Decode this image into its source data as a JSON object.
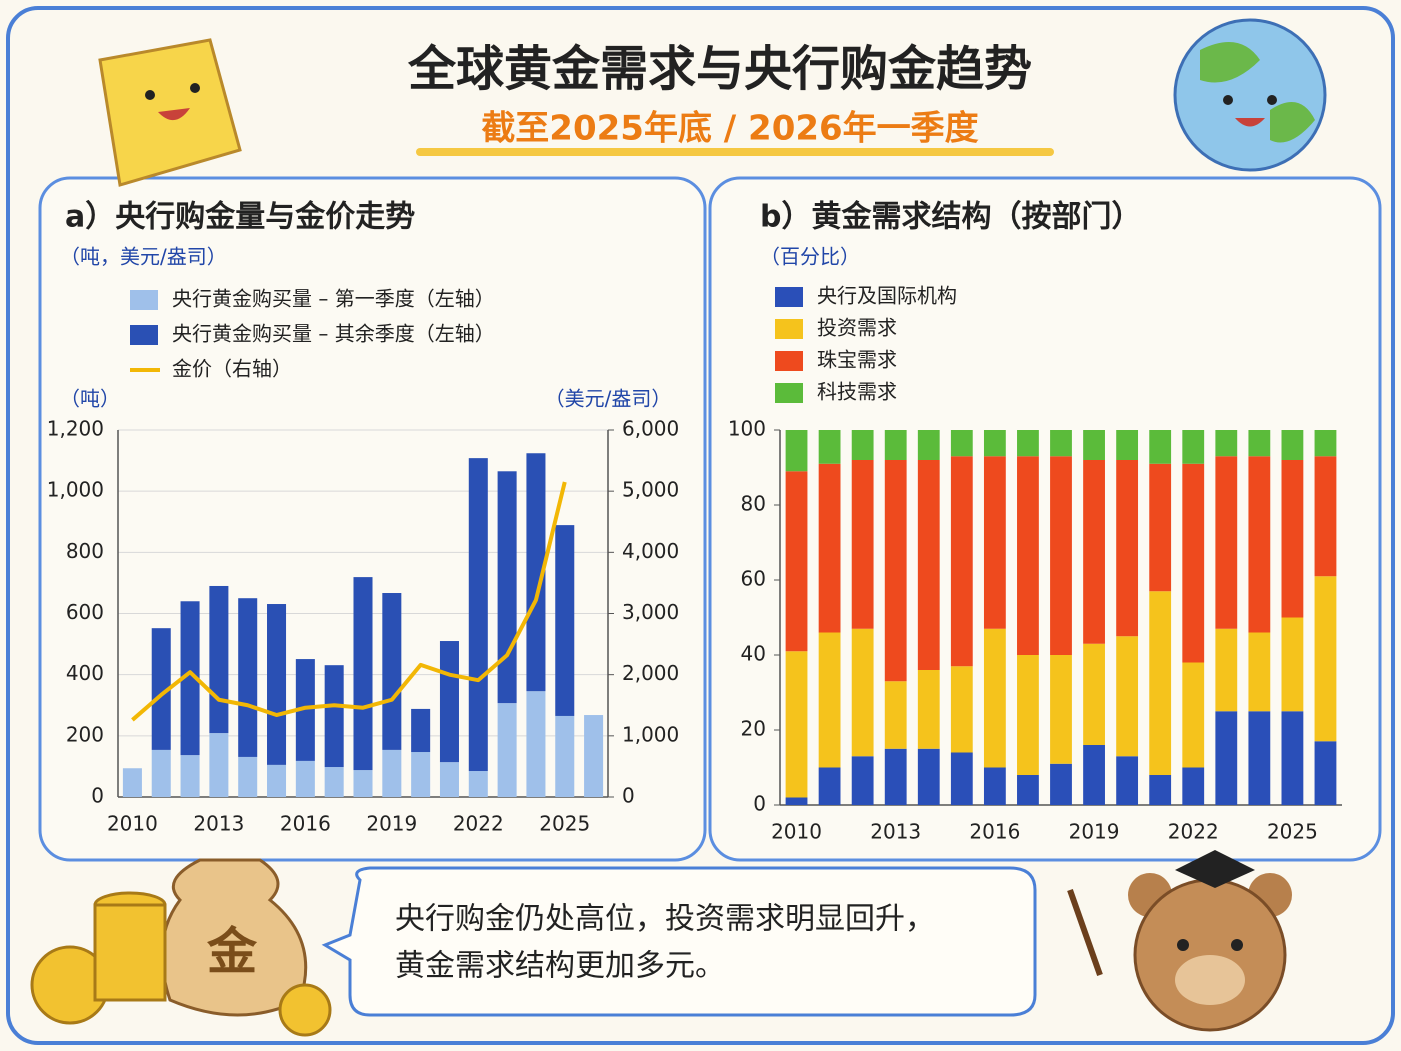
{
  "header": {
    "title": "全球黄金需求与央行购金趋势",
    "subtitle": "截至2025年底 / 2026年一季度"
  },
  "note": [
    "央行购金仍处高位，投资需求明显回升，",
    "黄金需求结构更加多元。"
  ],
  "chart_data": [
    {
      "type": "bar",
      "stacked": true,
      "title": "a）央行购金量与金价走势",
      "subtitle": "（吨，美元/盎司）",
      "ylabel": "（吨）",
      "y2label": "（美元/盎司）",
      "categories": [
        "2010",
        null,
        null,
        "2013",
        null,
        null,
        "2016",
        null,
        null,
        "2019",
        null,
        null,
        "2022",
        null,
        null,
        "2025",
        null
      ],
      "ylim": [
        0,
        1200
      ],
      "yticks": [
        0,
        200,
        400,
        600,
        800,
        {
          "value": 1000,
          "label": "1,000"
        },
        {
          "value": 1200,
          "label": "1,200"
        }
      ],
      "y2lim": [
        0,
        6000
      ],
      "y2ticks": [
        0,
        {
          "value": 1000,
          "label": "1,000"
        },
        {
          "value": 2000,
          "label": "2,000"
        },
        {
          "value": 3000,
          "label": "3,000"
        },
        {
          "value": 4000,
          "label": "4,000"
        },
        {
          "value": 5000,
          "label": "5,000"
        },
        {
          "value": 6000,
          "label": "6,000"
        }
      ],
      "grid": true,
      "series": [
        {
          "name": "央行黄金购买量 – 第一季度（左轴）",
          "color": "#9fc0ea",
          "values": [
            94,
            154,
            137,
            209,
            131,
            105,
            118,
            98,
            88,
            154,
            147,
            114,
            85,
            307,
            346,
            265,
            268
          ]
        },
        {
          "name": "央行黄金购买量 – 其余季度（左轴）",
          "color": "#2a50b4",
          "values": [
            0,
            398,
            503,
            481,
            519,
            526,
            333,
            333,
            631,
            513,
            141,
            396,
            1023,
            758,
            778,
            624,
            null
          ]
        },
        {
          "name": "金价（右轴）",
          "type": "line",
          "axis": "y2",
          "color": "#f2b705",
          "values": [
            1260,
            1670,
            2040,
            1590,
            1500,
            1340,
            1460,
            1500,
            1460,
            1590,
            2160,
            2000,
            1910,
            2320,
            3220,
            5150,
            null
          ]
        }
      ]
    },
    {
      "type": "bar",
      "stacked": true,
      "title": "b）黄金需求结构（按部门）",
      "subtitle": "（百分比）",
      "categories": [
        "2010",
        null,
        null,
        "2013",
        null,
        null,
        "2016",
        null,
        null,
        "2019",
        null,
        null,
        "2022",
        null,
        null,
        "2025",
        null
      ],
      "ylim": [
        0,
        100
      ],
      "yticks": [
        0,
        20,
        40,
        60,
        80,
        100
      ],
      "grid": false,
      "series": [
        {
          "name": "央行及国际机构",
          "color": "#2a4fb8",
          "values": [
            2,
            10,
            13,
            15,
            15,
            14,
            10,
            8,
            11,
            16,
            13,
            8,
            10,
            25,
            25,
            25,
            17
          ]
        },
        {
          "name": "投资需求",
          "color": "#f5c31c",
          "values": [
            39,
            36,
            34,
            18,
            21,
            23,
            37,
            32,
            29,
            27,
            32,
            49,
            28,
            22,
            21,
            25,
            44
          ]
        },
        {
          "name": "珠宝需求",
          "color": "#ee4a1e",
          "values": [
            48,
            45,
            45,
            59,
            56,
            56,
            46,
            53,
            53,
            49,
            47,
            34,
            53,
            46,
            47,
            42,
            32
          ]
        },
        {
          "name": "科技需求",
          "color": "#5bbb3a",
          "values": [
            11,
            9,
            8,
            8,
            8,
            7,
            7,
            7,
            7,
            8,
            8,
            9,
            9,
            7,
            7,
            8,
            7
          ]
        }
      ]
    }
  ]
}
